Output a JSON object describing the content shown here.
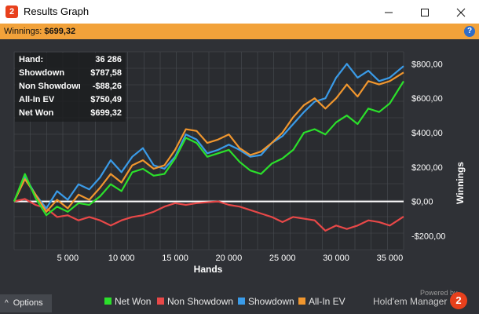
{
  "window": {
    "app_icon": "2",
    "title": "Results Graph",
    "minimize_icon": "minimize-icon",
    "maximize_icon": "maximize-icon",
    "close_icon": "close-icon"
  },
  "header": {
    "winnings_label": "Winnings:",
    "winnings_value": "$699,32",
    "help_icon": "?"
  },
  "stats": [
    {
      "label": "Hand:",
      "value": "36 286"
    },
    {
      "label": "Showdown",
      "value": "$787,58"
    },
    {
      "label": "Non Showdown",
      "value": "-$88,26"
    },
    {
      "label": "All-In EV",
      "value": "$750,49"
    },
    {
      "label": "Net Won",
      "value": "$699,32"
    }
  ],
  "chart_data": {
    "type": "line",
    "xlabel": "Hands",
    "ylabel": "Winnings",
    "x_ticks": [
      5000,
      10000,
      15000,
      20000,
      25000,
      30000,
      35000
    ],
    "x_tick_labels": [
      "5 000",
      "10 000",
      "15 000",
      "20 000",
      "25 000",
      "30 000",
      "35 000"
    ],
    "y_ticks": [
      800,
      600,
      400,
      200,
      0,
      -200
    ],
    "y_tick_labels": [
      "$800,00",
      "$600,00",
      "$400,00",
      "$200,00",
      "$0,00",
      "-$200,00"
    ],
    "xlim": [
      0,
      36286
    ],
    "ylim": [
      -280,
      870
    ],
    "grid": true,
    "legend_position": "bottom",
    "colors": {
      "net_won": "#2be02b",
      "non_showdown": "#e84848",
      "showdown": "#3a9be8",
      "all_in_ev": "#f0962e",
      "zero_line": "#ffffff",
      "grid": "#4a4d53"
    },
    "series": [
      {
        "name": "Net Won",
        "key": "net_won",
        "x": [
          0,
          1000,
          2000,
          3000,
          4000,
          5000,
          6000,
          7000,
          8000,
          9000,
          10000,
          11000,
          12000,
          13000,
          14000,
          15000,
          16000,
          17000,
          18000,
          19000,
          20000,
          21000,
          22000,
          23000,
          24000,
          25000,
          26000,
          27000,
          28000,
          29000,
          30000,
          31000,
          32000,
          33000,
          34000,
          35000,
          36286
        ],
        "y": [
          0,
          160,
          20,
          -80,
          -30,
          -60,
          -10,
          -20,
          30,
          100,
          60,
          170,
          190,
          150,
          160,
          250,
          370,
          340,
          260,
          280,
          300,
          230,
          180,
          160,
          220,
          250,
          300,
          400,
          420,
          390,
          460,
          500,
          450,
          540,
          520,
          570,
          699
        ]
      },
      {
        "name": "Non Showdown",
        "key": "non_showdown",
        "x": [
          0,
          1000,
          2000,
          3000,
          4000,
          5000,
          6000,
          7000,
          8000,
          9000,
          10000,
          11000,
          12000,
          13000,
          14000,
          15000,
          16000,
          17000,
          18000,
          19000,
          20000,
          21000,
          22000,
          23000,
          24000,
          25000,
          26000,
          27000,
          28000,
          29000,
          30000,
          31000,
          32000,
          33000,
          34000,
          35000,
          36286
        ],
        "y": [
          0,
          15,
          -20,
          -40,
          -90,
          -80,
          -110,
          -90,
          -110,
          -140,
          -110,
          -90,
          -80,
          -60,
          -30,
          -10,
          -20,
          -10,
          -5,
          0,
          -20,
          -30,
          -50,
          -70,
          -90,
          -120,
          -90,
          -100,
          -110,
          -170,
          -140,
          -160,
          -140,
          -110,
          -120,
          -140,
          -88
        ]
      },
      {
        "name": "Showdown",
        "key": "showdown",
        "x": [
          0,
          1000,
          2000,
          3000,
          4000,
          5000,
          6000,
          7000,
          8000,
          9000,
          10000,
          11000,
          12000,
          13000,
          14000,
          15000,
          16000,
          17000,
          18000,
          19000,
          20000,
          21000,
          22000,
          23000,
          24000,
          25000,
          26000,
          27000,
          28000,
          29000,
          30000,
          31000,
          32000,
          33000,
          34000,
          35000,
          36286
        ],
        "y": [
          0,
          145,
          40,
          -40,
          60,
          10,
          100,
          70,
          140,
          240,
          170,
          260,
          310,
          210,
          190,
          260,
          390,
          360,
          280,
          300,
          330,
          300,
          260,
          270,
          340,
          380,
          450,
          520,
          580,
          600,
          720,
          800,
          720,
          760,
          700,
          720,
          787
        ]
      },
      {
        "name": "All-In EV",
        "key": "all_in_ev",
        "x": [
          0,
          1000,
          2000,
          3000,
          4000,
          5000,
          6000,
          7000,
          8000,
          9000,
          10000,
          11000,
          12000,
          13000,
          14000,
          15000,
          16000,
          17000,
          18000,
          19000,
          20000,
          21000,
          22000,
          23000,
          24000,
          25000,
          26000,
          27000,
          28000,
          29000,
          30000,
          31000,
          32000,
          33000,
          34000,
          35000,
          36286
        ],
        "y": [
          0,
          130,
          40,
          -60,
          10,
          -40,
          40,
          10,
          80,
          160,
          110,
          210,
          240,
          190,
          210,
          300,
          420,
          410,
          340,
          360,
          390,
          310,
          270,
          290,
          340,
          400,
          490,
          560,
          600,
          540,
          600,
          680,
          610,
          700,
          680,
          700,
          750
        ]
      }
    ]
  },
  "bottom": {
    "options_label": "Options",
    "options_icon": "^",
    "legend": [
      {
        "label": "Net Won",
        "color": "#2be02b"
      },
      {
        "label": "Non Showdown",
        "color": "#e84848"
      },
      {
        "label": "Showdown",
        "color": "#3a9be8"
      },
      {
        "label": "All-In EV",
        "color": "#f0962e"
      }
    ],
    "powered_by": "Powered by",
    "brand": "Hold'em Manager",
    "brand_logo": "2"
  }
}
